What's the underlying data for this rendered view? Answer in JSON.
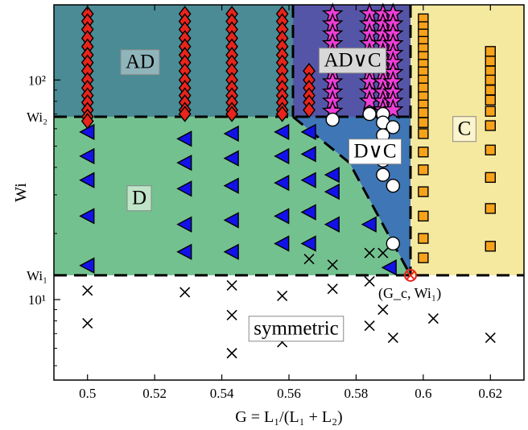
{
  "chart_data": {
    "type": "scatter",
    "title": "",
    "xlabel": "G = L₁/(L₁ + L₂)",
    "ylabel": "Wi",
    "xlim": [
      0.49,
      0.63
    ],
    "x_ticks": [
      0.5,
      0.52,
      0.54,
      0.56,
      0.58,
      0.6,
      0.62
    ],
    "x_tick_labels": [
      "0.5",
      "0.52",
      "0.54",
      "0.56",
      "0.58",
      "0.6",
      "0.62"
    ],
    "y_scale": "log",
    "ylim": [
      4.3,
      220
    ],
    "y_ticks": [
      10,
      100
    ],
    "y_tick_labels": [
      "10¹",
      "10²"
    ],
    "grid": false,
    "legend": "none",
    "thresholds": {
      "Wi1": 12.9,
      "Wi2": 68,
      "Wi1_label": "Wi₁",
      "Wi2_label": "Wi₂",
      "Gc": 0.5962
    },
    "critical_point": {
      "x": 0.5962,
      "y": 12.9,
      "label": "(G_c, Wi₁)"
    },
    "regions": [
      {
        "name": "AD",
        "label": "AD",
        "color": "#4a8b95"
      },
      {
        "name": "AD∨C",
        "label": "AD∨C",
        "color": "#5555a8"
      },
      {
        "name": "D",
        "label": "D",
        "color": "#74c190"
      },
      {
        "name": "D∨C",
        "label": "D∨C",
        "color": "#3f76b5"
      },
      {
        "name": "C",
        "label": "C",
        "color": "#f5e9a0"
      },
      {
        "name": "symmetric",
        "label": "symmetric",
        "color": "#ffffff"
      }
    ],
    "series": [
      {
        "marker": "diamond",
        "color": "#e8241c",
        "points": [
          [
            0.5,
            200
          ],
          [
            0.5,
            185
          ],
          [
            0.5,
            170
          ],
          [
            0.5,
            155
          ],
          [
            0.5,
            142
          ],
          [
            0.5,
            130
          ],
          [
            0.5,
            120
          ],
          [
            0.5,
            110
          ],
          [
            0.5,
            100
          ],
          [
            0.5,
            92
          ],
          [
            0.5,
            85
          ],
          [
            0.5,
            79
          ],
          [
            0.5,
            73
          ],
          [
            0.5,
            68
          ],
          [
            0.5,
            65
          ],
          [
            0.529,
            200
          ],
          [
            0.529,
            185
          ],
          [
            0.529,
            170
          ],
          [
            0.529,
            155
          ],
          [
            0.529,
            142
          ],
          [
            0.529,
            130
          ],
          [
            0.529,
            120
          ],
          [
            0.529,
            110
          ],
          [
            0.529,
            100
          ],
          [
            0.529,
            92
          ],
          [
            0.529,
            85
          ],
          [
            0.529,
            79
          ],
          [
            0.529,
            73
          ],
          [
            0.529,
            70
          ],
          [
            0.543,
            200
          ],
          [
            0.543,
            185
          ],
          [
            0.543,
            170
          ],
          [
            0.543,
            155
          ],
          [
            0.543,
            142
          ],
          [
            0.543,
            130
          ],
          [
            0.543,
            120
          ],
          [
            0.543,
            110
          ],
          [
            0.543,
            100
          ],
          [
            0.543,
            92
          ],
          [
            0.543,
            85
          ],
          [
            0.543,
            79
          ],
          [
            0.543,
            73
          ],
          [
            0.543,
            70
          ],
          [
            0.558,
            200
          ],
          [
            0.558,
            185
          ],
          [
            0.558,
            170
          ],
          [
            0.558,
            155
          ],
          [
            0.558,
            142
          ],
          [
            0.558,
            130
          ],
          [
            0.558,
            120
          ],
          [
            0.558,
            110
          ],
          [
            0.558,
            100
          ],
          [
            0.558,
            92
          ],
          [
            0.558,
            85
          ],
          [
            0.558,
            79
          ],
          [
            0.558,
            73
          ],
          [
            0.558,
            70
          ],
          [
            0.566,
            110
          ],
          [
            0.566,
            100
          ],
          [
            0.566,
            92
          ],
          [
            0.566,
            85
          ],
          [
            0.566,
            79
          ],
          [
            0.566,
            73
          ]
        ]
      },
      {
        "marker": "star",
        "color": "#ee3ed8",
        "points": [
          [
            0.573,
            200
          ],
          [
            0.573,
            180
          ],
          [
            0.573,
            162
          ],
          [
            0.573,
            146
          ],
          [
            0.573,
            132
          ],
          [
            0.573,
            120
          ],
          [
            0.573,
            108
          ],
          [
            0.573,
            98
          ],
          [
            0.573,
            88
          ],
          [
            0.573,
            80
          ],
          [
            0.573,
            72
          ],
          [
            0.584,
            200
          ],
          [
            0.584,
            180
          ],
          [
            0.584,
            162
          ],
          [
            0.584,
            146
          ],
          [
            0.584,
            132
          ],
          [
            0.584,
            120
          ],
          [
            0.584,
            108
          ],
          [
            0.584,
            98
          ],
          [
            0.584,
            88
          ],
          [
            0.584,
            80
          ],
          [
            0.588,
            200
          ],
          [
            0.588,
            180
          ],
          [
            0.588,
            162
          ],
          [
            0.588,
            146
          ],
          [
            0.588,
            132
          ],
          [
            0.588,
            120
          ],
          [
            0.588,
            108
          ],
          [
            0.588,
            98
          ],
          [
            0.588,
            88
          ],
          [
            0.588,
            80
          ],
          [
            0.588,
            73
          ],
          [
            0.591,
            200
          ],
          [
            0.591,
            180
          ],
          [
            0.591,
            162
          ],
          [
            0.591,
            146
          ],
          [
            0.591,
            132
          ],
          [
            0.591,
            120
          ],
          [
            0.591,
            108
          ],
          [
            0.591,
            98
          ],
          [
            0.591,
            88
          ],
          [
            0.591,
            80
          ],
          [
            0.591,
            73
          ]
        ]
      },
      {
        "marker": "circle",
        "color": "#ffffff",
        "points": [
          [
            0.573,
            66
          ],
          [
            0.584,
            70
          ],
          [
            0.588,
            70
          ],
          [
            0.588,
            64
          ],
          [
            0.588,
            56
          ],
          [
            0.588,
            43
          ],
          [
            0.588,
            37
          ],
          [
            0.591,
            61
          ],
          [
            0.591,
            50
          ],
          [
            0.591,
            33
          ],
          [
            0.591,
            18
          ]
        ]
      },
      {
        "marker": "triangle-left",
        "color": "#1212e8",
        "points": [
          [
            0.5,
            58
          ],
          [
            0.5,
            45
          ],
          [
            0.5,
            35
          ],
          [
            0.5,
            24
          ],
          [
            0.5,
            14.3
          ],
          [
            0.529,
            54
          ],
          [
            0.529,
            42
          ],
          [
            0.529,
            32
          ],
          [
            0.529,
            22
          ],
          [
            0.529,
            16.5
          ],
          [
            0.543,
            57
          ],
          [
            0.543,
            44
          ],
          [
            0.543,
            33
          ],
          [
            0.543,
            23
          ],
          [
            0.543,
            16.5
          ],
          [
            0.558,
            58
          ],
          [
            0.558,
            45
          ],
          [
            0.558,
            34
          ],
          [
            0.558,
            24
          ],
          [
            0.558,
            18
          ],
          [
            0.566,
            58
          ],
          [
            0.566,
            46
          ],
          [
            0.566,
            35
          ],
          [
            0.566,
            25
          ],
          [
            0.566,
            18
          ],
          [
            0.573,
            37
          ],
          [
            0.573,
            31
          ],
          [
            0.573,
            22
          ],
          [
            0.584,
            22
          ],
          [
            0.59,
            14
          ]
        ]
      },
      {
        "marker": "square",
        "color": "#f7a21b",
        "points": [
          [
            0.6,
            190
          ],
          [
            0.6,
            175
          ],
          [
            0.6,
            162
          ],
          [
            0.6,
            150
          ],
          [
            0.6,
            139
          ],
          [
            0.6,
            128
          ],
          [
            0.6,
            118
          ],
          [
            0.6,
            109
          ],
          [
            0.6,
            100
          ],
          [
            0.6,
            92
          ],
          [
            0.6,
            84
          ],
          [
            0.6,
            77
          ],
          [
            0.6,
            71
          ],
          [
            0.6,
            64
          ],
          [
            0.6,
            57
          ],
          [
            0.6,
            47
          ],
          [
            0.6,
            39
          ],
          [
            0.6,
            31
          ],
          [
            0.6,
            24
          ],
          [
            0.6,
            19
          ],
          [
            0.6,
            15.5
          ],
          [
            0.62,
            135
          ],
          [
            0.62,
            122
          ],
          [
            0.62,
            110
          ],
          [
            0.62,
            100
          ],
          [
            0.62,
            90
          ],
          [
            0.62,
            81
          ],
          [
            0.62,
            72
          ],
          [
            0.62,
            62
          ],
          [
            0.62,
            48
          ],
          [
            0.62,
            36
          ],
          [
            0.62,
            26
          ],
          [
            0.62,
            17.5
          ]
        ]
      },
      {
        "marker": "x",
        "color": "#000000",
        "points": [
          [
            0.5,
            11
          ],
          [
            0.5,
            7.8
          ],
          [
            0.529,
            10.8
          ],
          [
            0.543,
            11.6
          ],
          [
            0.543,
            8.5
          ],
          [
            0.543,
            5.7
          ],
          [
            0.558,
            10.4
          ],
          [
            0.558,
            6.4
          ],
          [
            0.566,
            15.3
          ],
          [
            0.573,
            14.4
          ],
          [
            0.573,
            11.2
          ],
          [
            0.573,
            6.9
          ],
          [
            0.584,
            16.3
          ],
          [
            0.584,
            12.1
          ],
          [
            0.584,
            7.6
          ],
          [
            0.588,
            16.3
          ],
          [
            0.588,
            9
          ],
          [
            0.591,
            6.7
          ],
          [
            0.603,
            8.2
          ],
          [
            0.62,
            6.7
          ]
        ]
      }
    ]
  }
}
